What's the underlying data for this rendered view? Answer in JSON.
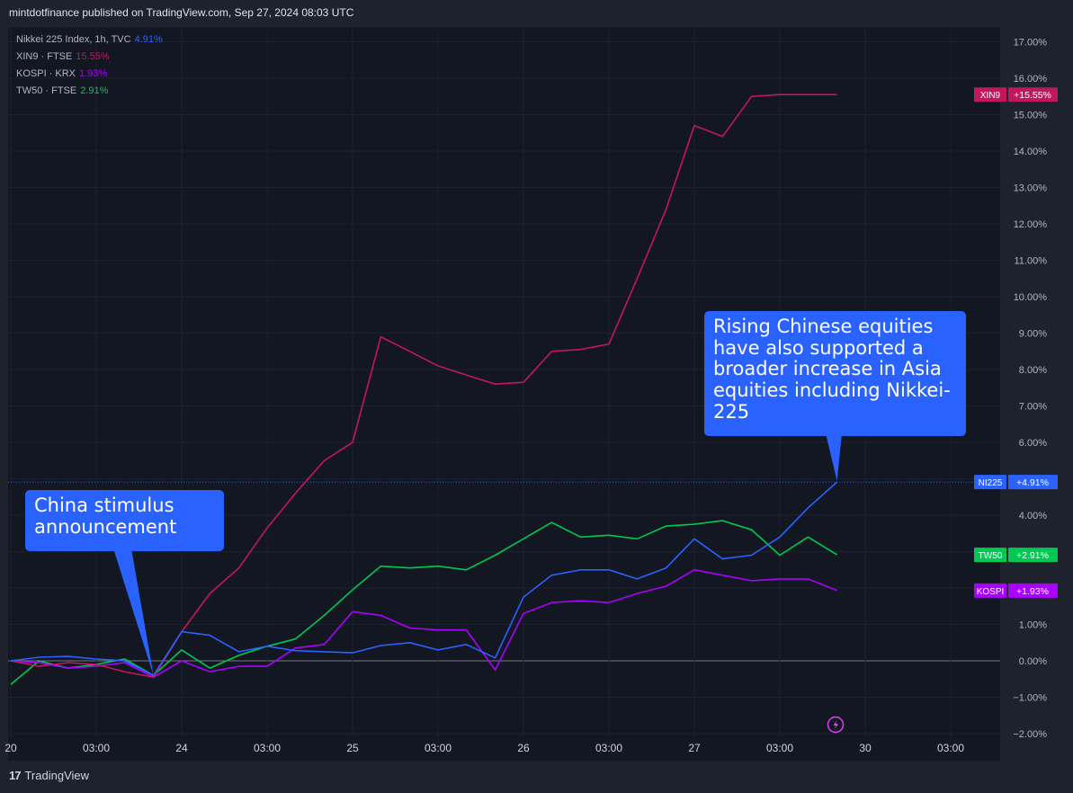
{
  "header": {
    "text": "mintdotfinance published on TradingView.com, Sep 27, 2024 08:03 UTC"
  },
  "legend": [
    {
      "label": "Nikkei 225 Index, 1h, TVC",
      "value": "4.91%",
      "color": "#2962ff"
    },
    {
      "label": "XIN9 · FTSE",
      "value": "15.55%",
      "color": "#c2185b"
    },
    {
      "label": "KOSPI · KRX",
      "value": "1.93%",
      "color": "#aa00ff"
    },
    {
      "label": "TW50 · FTSE",
      "value": "2.91%",
      "color": "#00c853"
    }
  ],
  "annotations": {
    "china": "China stimulus announcement",
    "rising": "Rising Chinese equities have also supported a broader increase in Asia equities including Nikkei-225"
  },
  "brand": {
    "name": "TradingView"
  },
  "colors": {
    "nikkei": "#2962ff",
    "xin9": "#c2185b",
    "kospi": "#aa00ff",
    "tw50": "#00c853",
    "callout": "#2962ff"
  },
  "chart_data": {
    "type": "line",
    "title": "Nikkei 225 Index, 1h, TVC",
    "ylabel": "%",
    "ylim": [
      -2,
      17.5
    ],
    "yticks": [
      "17.00%",
      "16.00%",
      "15.00%",
      "14.00%",
      "13.00%",
      "12.00%",
      "11.00%",
      "10.00%",
      "9.00%",
      "8.00%",
      "7.00%",
      "6.00%",
      "5.00%",
      "4.00%",
      "3.00%",
      "2.00%",
      "1.00%",
      "0.00%",
      "−1.00%",
      "−2.00%"
    ],
    "xlim": [
      0,
      11.6
    ],
    "xticks": [
      {
        "t": 0,
        "label": "20"
      },
      {
        "t": 1,
        "label": "03:00"
      },
      {
        "t": 2,
        "label": "24"
      },
      {
        "t": 3,
        "label": "03:00"
      },
      {
        "t": 4,
        "label": "25"
      },
      {
        "t": 5,
        "label": "03:00"
      },
      {
        "t": 6,
        "label": "26"
      },
      {
        "t": 7,
        "label": "03:00"
      },
      {
        "t": 8,
        "label": "27"
      },
      {
        "t": 9,
        "label": "03:00"
      },
      {
        "t": 10,
        "label": "30"
      },
      {
        "t": 11,
        "label": "03:00"
      }
    ],
    "x": [
      0,
      0.33,
      0.67,
      1.0,
      1.33,
      1.67,
      2.0,
      2.33,
      2.67,
      3.0,
      3.33,
      3.67,
      4.0,
      4.33,
      4.67,
      5.0,
      5.33,
      5.67,
      6.0,
      6.33,
      6.67,
      7.0,
      7.33,
      7.67,
      8.0,
      8.33,
      8.67,
      9.0,
      9.33,
      9.67
    ],
    "series": [
      {
        "name": "XIN9",
        "color": "#c2185b",
        "tag": "XIN9",
        "tag_value": "+15.55%",
        "values": [
          0.0,
          -0.15,
          -0.05,
          -0.1,
          -0.3,
          -0.45,
          0.8,
          1.85,
          2.55,
          3.65,
          4.6,
          5.5,
          6.0,
          8.9,
          8.5,
          8.1,
          7.85,
          7.6,
          7.65,
          8.5,
          8.55,
          8.7,
          10.5,
          12.4,
          14.7,
          14.4,
          15.5,
          15.55,
          15.55,
          15.55
        ]
      },
      {
        "name": "NI225",
        "color": "#2962ff",
        "tag": "NI225",
        "tag_value": "+4.91%",
        "values": [
          0.0,
          0.1,
          0.12,
          0.05,
          0.0,
          -0.4,
          0.8,
          0.7,
          0.25,
          0.4,
          0.28,
          0.25,
          0.22,
          0.42,
          0.5,
          0.3,
          0.45,
          0.08,
          1.75,
          2.35,
          2.5,
          2.5,
          2.25,
          2.55,
          3.35,
          2.8,
          2.9,
          3.4,
          4.2,
          4.91
        ]
      },
      {
        "name": "TW50",
        "color": "#00c853",
        "tag": "TW50",
        "tag_value": "+2.91%",
        "values": [
          -0.65,
          0.0,
          -0.2,
          -0.1,
          0.05,
          -0.4,
          0.3,
          -0.2,
          0.15,
          0.4,
          0.6,
          1.25,
          1.95,
          2.6,
          2.55,
          2.6,
          2.5,
          2.9,
          3.35,
          3.8,
          3.4,
          3.45,
          3.35,
          3.7,
          3.75,
          3.85,
          3.6,
          2.9,
          3.4,
          2.91
        ]
      },
      {
        "name": "KOSPI",
        "color": "#aa00ff",
        "tag": "KOSPI",
        "tag_value": "+1.93%",
        "values": [
          0.0,
          -0.05,
          -0.2,
          -0.15,
          -0.05,
          -0.45,
          0.0,
          -0.3,
          -0.15,
          -0.15,
          0.35,
          0.45,
          1.35,
          1.25,
          0.9,
          0.85,
          0.85,
          -0.25,
          1.3,
          1.6,
          1.65,
          1.6,
          1.85,
          2.05,
          2.5,
          2.35,
          2.2,
          2.25,
          2.25,
          1.93
        ]
      }
    ]
  }
}
